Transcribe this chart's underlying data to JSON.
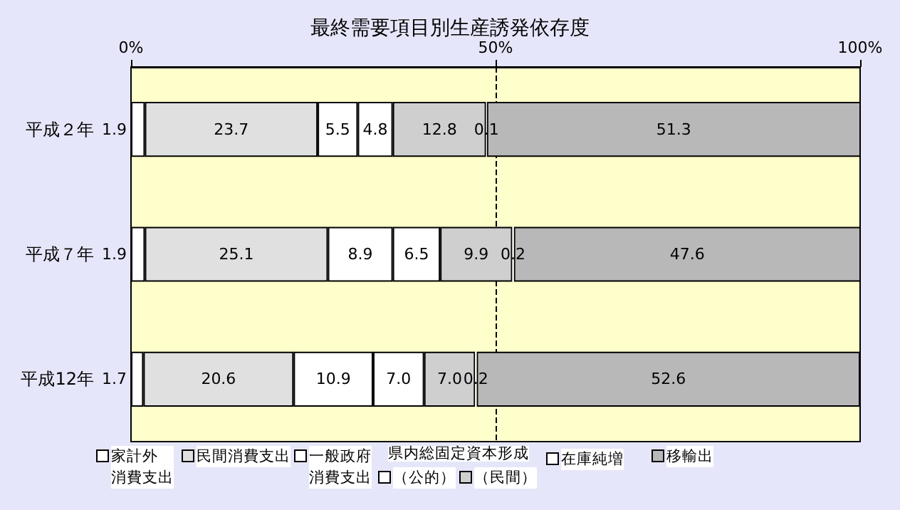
{
  "chart_data": {
    "type": "bar",
    "orientation": "horizontal",
    "stacked": true,
    "title": "最終需要項目別生産誘発依存度",
    "categories": [
      "平成２年",
      "平成７年",
      "平成12年"
    ],
    "xlim": [
      0,
      100
    ],
    "xticks": [
      {
        "value": 0,
        "label": "0%"
      },
      {
        "value": 50,
        "label": "50%"
      },
      {
        "value": 100,
        "label": "100%"
      }
    ],
    "grid": false,
    "legend": "bottom",
    "ref_lines": [
      {
        "axis": "x",
        "value": 50,
        "label": null,
        "line_style": "dashed"
      }
    ],
    "annotations": [
      "県内総固定資本形成"
    ],
    "series": [
      {
        "name": "家計外消費支出",
        "color": "#ffffff",
        "values": [
          1.9,
          1.9,
          1.7
        ],
        "value_labels": [
          "1.9",
          "1.9",
          "1.7"
        ]
      },
      {
        "name": "民間消費支出",
        "color": "#e0e0e0",
        "values": [
          23.7,
          25.1,
          20.6
        ],
        "value_labels": [
          "23.7",
          "25.1",
          "20.6"
        ]
      },
      {
        "name": "一般政府消費支出",
        "color": "#ffffff",
        "values": [
          5.5,
          8.9,
          10.9
        ],
        "value_labels": [
          "5.5",
          "8.9",
          "10.9"
        ]
      },
      {
        "name": "（公的）",
        "color": "#ffffff",
        "values": [
          4.8,
          6.5,
          7.0
        ],
        "value_labels": [
          "4.8",
          "6.5",
          "7.0"
        ]
      },
      {
        "name": "（民間）",
        "color": "#cfcfcf",
        "values": [
          12.8,
          9.9,
          7.0
        ],
        "value_labels": [
          "12.8",
          "9.9",
          "7.0"
        ]
      },
      {
        "name": "在庫純増",
        "color": "#ffffff",
        "values": [
          0.1,
          0.2,
          0.2
        ],
        "value_labels": [
          "0.1",
          "0.2",
          "0.2"
        ]
      },
      {
        "name": "移輸出",
        "color": "#b8b8b8",
        "values": [
          51.3,
          47.6,
          52.6
        ],
        "value_labels": [
          "51.3",
          "47.6",
          "52.6"
        ]
      }
    ]
  }
}
